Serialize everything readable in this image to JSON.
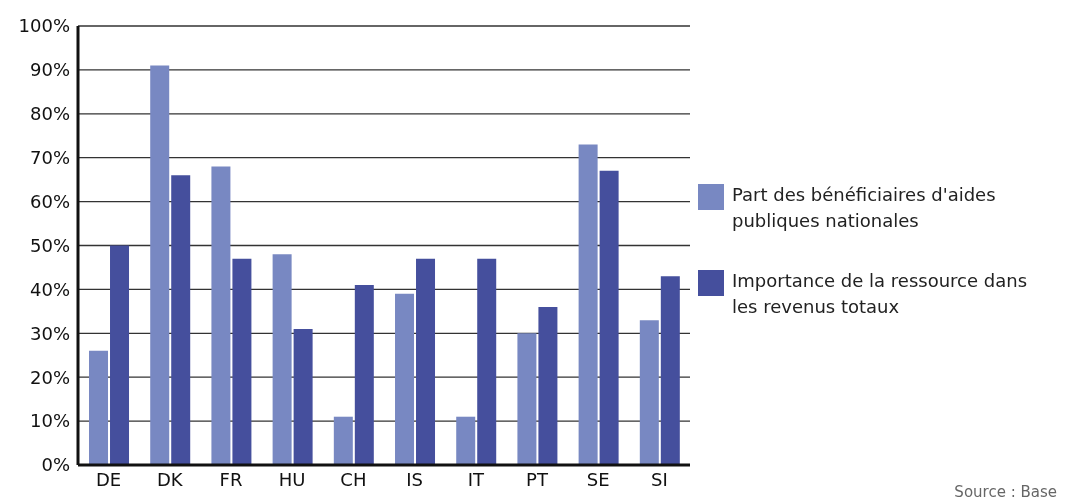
{
  "chart_data": {
    "type": "bar",
    "categories": [
      "DE",
      "DK",
      "FR",
      "HU",
      "CH",
      "IS",
      "IT",
      "PT",
      "SE",
      "SI"
    ],
    "series": [
      {
        "name": "Part des bénéficiaires d'aides publiques nationales",
        "color": "#7888c2",
        "values": [
          26,
          91,
          68,
          48,
          11,
          39,
          11,
          30,
          73,
          33
        ]
      },
      {
        "name": "Importance de la ressource dans les revenus totaux",
        "color": "#454f9d",
        "values": [
          50,
          66,
          47,
          31,
          41,
          47,
          47,
          36,
          67,
          43
        ]
      }
    ],
    "ylim": [
      0,
      100
    ],
    "yticks": [
      {
        "value": 0,
        "label": "0%"
      },
      {
        "value": 10,
        "label": "10%"
      },
      {
        "value": 20,
        "label": "20%"
      },
      {
        "value": 30,
        "label": "30%"
      },
      {
        "value": 40,
        "label": "40%"
      },
      {
        "value": 50,
        "label": "50%"
      },
      {
        "value": 60,
        "label": "60%"
      },
      {
        "value": 70,
        "label": "70%"
      },
      {
        "value": 80,
        "label": "80%"
      },
      {
        "value": 90,
        "label": "90%"
      },
      {
        "value": 100,
        "label": "100%"
      }
    ],
    "grid": "y",
    "legend": "right",
    "annotations": [
      "Source : Base"
    ]
  }
}
